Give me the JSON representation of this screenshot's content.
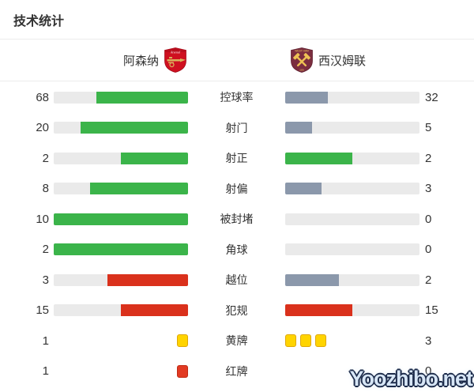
{
  "title": "技术统计",
  "teams": {
    "home": {
      "name": "阿森纳",
      "crest_text": "Arsenal"
    },
    "away": {
      "name": "西汉姆联",
      "crest_text": "WEST HAM"
    }
  },
  "colors": {
    "green": "#3bb44a",
    "slate": "#8b98ab",
    "red": "#da311c",
    "track": "#eaeaea",
    "card_yellow": "#ffd400",
    "card_yellow_border": "#dfa706",
    "card_red": "#e23a23",
    "card_red_border": "#bf2a14"
  },
  "stats": [
    {
      "type": "bar",
      "label": "控球率",
      "home": "68",
      "away": "32",
      "home_pct": 68,
      "away_pct": 32,
      "home_color": "green",
      "away_color": "slate"
    },
    {
      "type": "bar",
      "label": "射门",
      "home": "20",
      "away": "5",
      "home_pct": 80,
      "away_pct": 20,
      "home_color": "green",
      "away_color": "slate"
    },
    {
      "type": "bar",
      "label": "射正",
      "home": "2",
      "away": "2",
      "home_pct": 50,
      "away_pct": 50,
      "home_color": "green",
      "away_color": "green"
    },
    {
      "type": "bar",
      "label": "射偏",
      "home": "8",
      "away": "3",
      "home_pct": 72.7,
      "away_pct": 27.3,
      "home_color": "green",
      "away_color": "slate"
    },
    {
      "type": "bar",
      "label": "被封堵",
      "home": "10",
      "away": "0",
      "home_pct": 100,
      "away_pct": 0,
      "home_color": "green",
      "away_color": "none"
    },
    {
      "type": "bar",
      "label": "角球",
      "home": "2",
      "away": "0",
      "home_pct": 100,
      "away_pct": 0,
      "home_color": "green",
      "away_color": "none"
    },
    {
      "type": "bar",
      "label": "越位",
      "home": "3",
      "away": "2",
      "home_pct": 60,
      "away_pct": 40,
      "home_color": "red",
      "away_color": "slate"
    },
    {
      "type": "bar",
      "label": "犯规",
      "home": "15",
      "away": "15",
      "home_pct": 50,
      "away_pct": 50,
      "home_color": "red",
      "away_color": "red"
    },
    {
      "type": "cards",
      "label": "黄牌",
      "home": "1",
      "away": "3",
      "card_color": "yellow",
      "home_cards": 1,
      "away_cards": 3
    },
    {
      "type": "cards",
      "label": "红牌",
      "home": "1",
      "away": "0",
      "card_color": "red",
      "home_cards": 1,
      "away_cards": 0
    }
  ],
  "watermark": "Yoozhibo.net",
  "chart_data": {
    "type": "bar",
    "title": "技术统计",
    "categories": [
      "控球率",
      "射门",
      "射正",
      "射偏",
      "被封堵",
      "角球",
      "越位",
      "犯规",
      "黄牌",
      "红牌"
    ],
    "series": [
      {
        "name": "阿森纳",
        "values": [
          68,
          20,
          2,
          8,
          10,
          2,
          3,
          15,
          1,
          1
        ]
      },
      {
        "name": "西汉姆联",
        "values": [
          32,
          5,
          2,
          3,
          0,
          0,
          2,
          15,
          3,
          0
        ]
      }
    ],
    "layout": "mirrored horizontal comparison bars; each fill width = value / row total; yellow/red card rows drawn as card icons"
  }
}
